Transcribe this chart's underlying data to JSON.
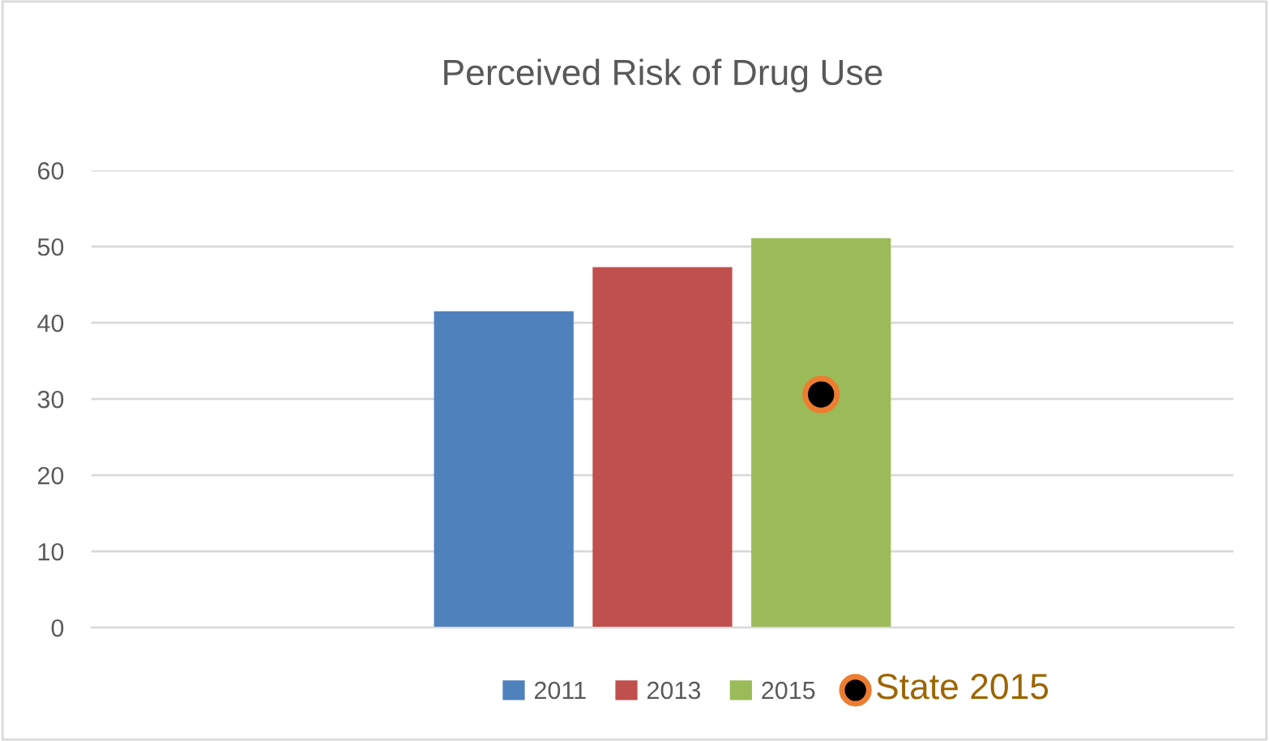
{
  "chart_data": {
    "type": "bar",
    "title": "Perceived Risk of Drug Use",
    "categories": [
      null
    ],
    "series": [
      {
        "name": "2011",
        "color": "#4f81bd",
        "values": [
          41.5
        ]
      },
      {
        "name": "2013",
        "color": "#c0504d",
        "values": [
          47.3
        ]
      },
      {
        "name": "2015",
        "color": "#9bbb59",
        "values": [
          51.1
        ]
      },
      {
        "name": "State 2015",
        "type": "scatter",
        "color": "#000000",
        "values": [
          30.6
        ]
      }
    ],
    "ylim": [
      0,
      60
    ],
    "yticks": [
      0,
      10,
      20,
      30,
      40,
      50,
      60
    ],
    "grid": "y",
    "legend": "bottom",
    "marker": "circle"
  }
}
